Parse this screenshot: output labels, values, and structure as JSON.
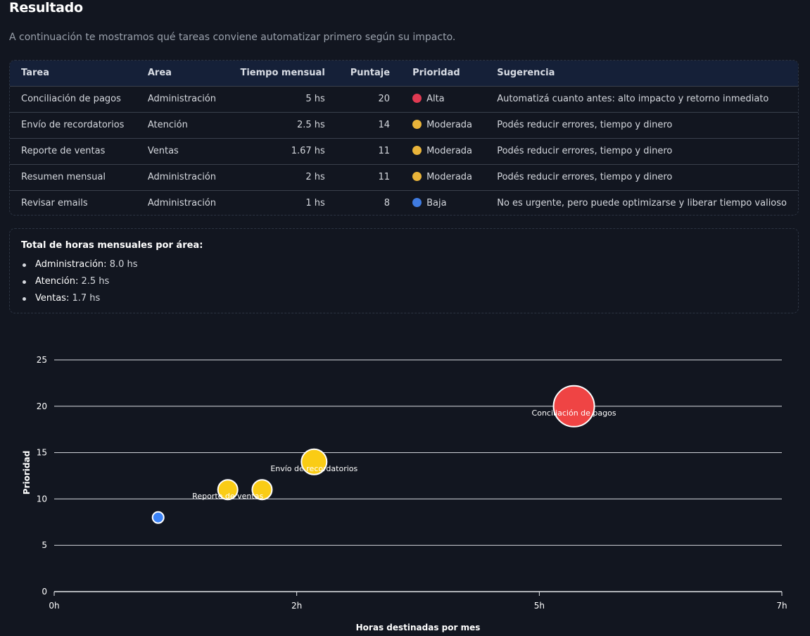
{
  "page": {
    "title": "Resultado",
    "subtitle": "A continuación te mostramos qué tareas conviene automatizar primero según su impacto."
  },
  "table": {
    "headers": {
      "task": "Tarea",
      "area": "Area",
      "time": "Tiempo mensual",
      "score": "Puntaje",
      "priority": "Prioridad",
      "suggestion": "Sugerencia"
    },
    "rows": [
      {
        "task": "Conciliación de pagos",
        "area": "Administración",
        "time": "5 hs",
        "score": "20",
        "priority": "Alta",
        "priority_color": "#e03a52",
        "suggestion": "Automatizá cuanto antes: alto impacto y retorno inmediato"
      },
      {
        "task": "Envío de recordatorios",
        "area": "Atención",
        "time": "2.5 hs",
        "score": "14",
        "priority": "Moderada",
        "priority_color": "#e9b43a",
        "suggestion": "Podés reducir errores, tiempo y dinero"
      },
      {
        "task": "Reporte de ventas",
        "area": "Ventas",
        "time": "1.67 hs",
        "score": "11",
        "priority": "Moderada",
        "priority_color": "#e9b43a",
        "suggestion": "Podés reducir errores, tiempo y dinero"
      },
      {
        "task": "Resumen mensual",
        "area": "Administración",
        "time": "2 hs",
        "score": "11",
        "priority": "Moderada",
        "priority_color": "#e9b43a",
        "suggestion": "Podés reducir errores, tiempo y dinero"
      },
      {
        "task": "Revisar emails",
        "area": "Administración",
        "time": "1 hs",
        "score": "8",
        "priority": "Baja",
        "priority_color": "#3f7be0",
        "suggestion": "No es urgente, pero puede optimizarse y liberar tiempo valioso"
      }
    ]
  },
  "summary": {
    "title": "Total de horas mensuales por área:",
    "items": [
      {
        "area": "Administración:",
        "value": "8.0 hs"
      },
      {
        "area": "Atención:",
        "value": "2.5 hs"
      },
      {
        "area": "Ventas:",
        "value": "1.7 hs"
      }
    ]
  },
  "chart_data": {
    "type": "scatter",
    "xlabel": "Horas destinadas por mes",
    "ylabel": "Prioridad",
    "xlim": [
      0,
      7
    ],
    "ylim": [
      0,
      25
    ],
    "x_ticks": [
      {
        "value": 0,
        "label": "0h"
      },
      {
        "value": 2.333,
        "label": "2h"
      },
      {
        "value": 4.667,
        "label": "5h"
      },
      {
        "value": 7,
        "label": "7h"
      }
    ],
    "y_ticks": [
      0,
      5,
      10,
      15,
      20,
      25
    ],
    "grid": true,
    "points": [
      {
        "name": "Conciliación de pagos",
        "x": 5,
        "y": 20,
        "r": 29,
        "color": "#ef4444",
        "label": "Conciliación de pagos"
      },
      {
        "name": "Envío de recordatorios",
        "x": 2.5,
        "y": 14,
        "r": 18,
        "color": "#facc15",
        "label": "Envío de recordatorios"
      },
      {
        "name": "Reporte de ventas",
        "x": 1.67,
        "y": 11,
        "r": 14,
        "color": "#facc15",
        "label": "Reporte de ventas"
      },
      {
        "name": "Resumen mensual",
        "x": 2,
        "y": 11,
        "r": 14,
        "color": "#facc15",
        "label": ""
      },
      {
        "name": "Revisar emails",
        "x": 1,
        "y": 8,
        "r": 8,
        "color": "#3b82f6",
        "label": ""
      }
    ]
  }
}
